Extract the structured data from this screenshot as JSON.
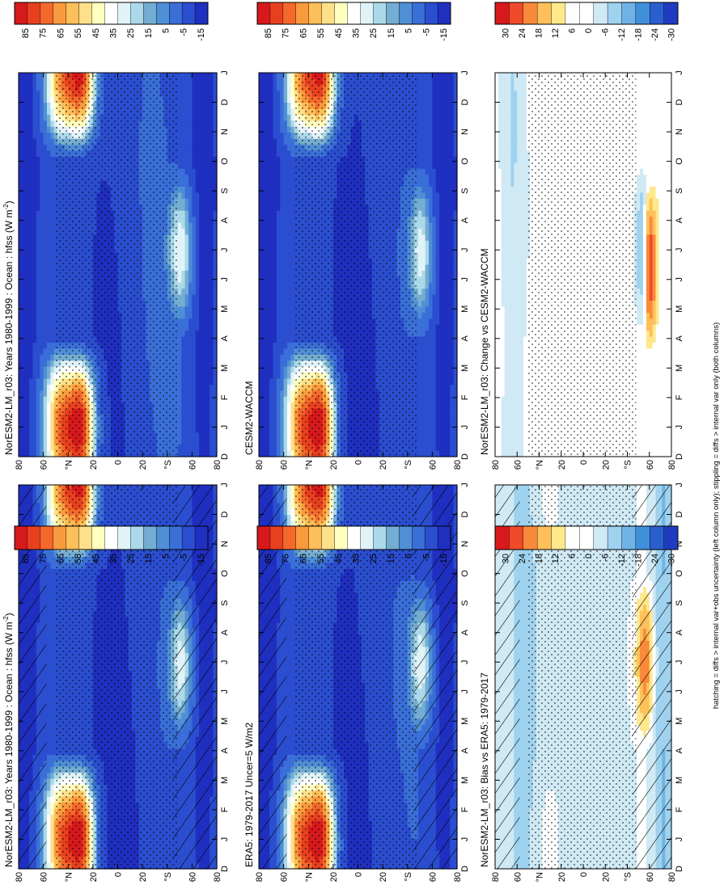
{
  "figure": {
    "footnote": "hatching = diffs > internal var+obs uncertainty (left column only); stippling = diffs > internal var only (both columns)"
  },
  "colors": {
    "absolute_scale": [
      "#d7191c",
      "#e8401f",
      "#f4692b",
      "#f99a3d",
      "#fdbf59",
      "#fee08b",
      "#ffffbf",
      "#ffffff",
      "#e0f3f8",
      "#abd9e9",
      "#74add1",
      "#4f8fd6",
      "#3a6fd8",
      "#2b4ed0",
      "#1f2fc0"
    ],
    "difference_scale": [
      "#d7191c",
      "#ef4a2a",
      "#f98a3a",
      "#fdc05a",
      "#fee88b",
      "#ffffff",
      "#ffffff",
      "#cfe9f5",
      "#9fd2ee",
      "#6fb3e6",
      "#3f8fdb",
      "#2a5fcf",
      "#1f3cc0"
    ]
  },
  "common": {
    "lat_ticks": [
      "80",
      "60",
      "°N",
      "20",
      "0",
      "20",
      "°S",
      "60",
      "80"
    ],
    "month_ticks": [
      "D",
      "J",
      "F",
      "M",
      "A",
      "M",
      "J",
      "J",
      "A",
      "S",
      "O",
      "N",
      "D",
      "J"
    ]
  },
  "colorbars": {
    "absolute": [
      "85",
      "75",
      "65",
      "55",
      "45",
      "35",
      "25",
      "15",
      "5",
      "-5",
      "-15"
    ],
    "difference": [
      "30",
      "24",
      "18",
      "12",
      "6",
      "0",
      "-6",
      "-12",
      "-18",
      "-24",
      "-30"
    ]
  },
  "chart_data": [
    {
      "type": "heatmap",
      "title": "NorESM2-LM_r03: Years 1980-1999 : Ocean : hfss (W m",
      "title_sup": "-2",
      "title_end": ")",
      "x": [
        "D",
        "J",
        "F",
        "M",
        "A",
        "M",
        "J",
        "J",
        "A",
        "S",
        "O",
        "N",
        "D",
        "J"
      ],
      "y": [
        "80",
        "60",
        "°N",
        "20",
        "0",
        "20",
        "°S",
        "60",
        "80"
      ],
      "scale": "absolute",
      "colorbar": [
        "85",
        "75",
        "65",
        "55",
        "45",
        "35",
        "25",
        "15",
        "5",
        "-5",
        "-15"
      ],
      "hatching": true,
      "stippling": true
    },
    {
      "type": "heatmap",
      "title": "NorESM2-LM_r03: Years 1980-1999 : Ocean : hfss (W m",
      "title_sup": "-2",
      "title_end": ")",
      "x": [
        "D",
        "J",
        "F",
        "M",
        "A",
        "M",
        "J",
        "J",
        "A",
        "S",
        "O",
        "N",
        "D",
        "J"
      ],
      "y": [
        "80",
        "60",
        "°N",
        "20",
        "0",
        "20",
        "°S",
        "60",
        "80"
      ],
      "scale": "absolute",
      "colorbar": [
        "85",
        "75",
        "65",
        "55",
        "45",
        "35",
        "25",
        "15",
        "5",
        "-5",
        "-15"
      ],
      "hatching": false,
      "stippling": true
    },
    {
      "type": "heatmap",
      "title": "ERA5: 1979-2017 Uncer=5 W/m2",
      "x": [
        "D",
        "J",
        "F",
        "M",
        "A",
        "M",
        "J",
        "J",
        "A",
        "S",
        "O",
        "N",
        "D",
        "J"
      ],
      "y": [
        "80",
        "60",
        "°N",
        "20",
        "0",
        "20",
        "°S",
        "60",
        "80"
      ],
      "scale": "absolute",
      "colorbar": [
        "85",
        "75",
        "65",
        "55",
        "45",
        "35",
        "25",
        "15",
        "5",
        "-5",
        "-15"
      ],
      "hatching": true,
      "stippling": true
    },
    {
      "type": "heatmap",
      "title": "CESM2-WACCM",
      "x": [
        "D",
        "J",
        "F",
        "M",
        "A",
        "M",
        "J",
        "J",
        "A",
        "S",
        "O",
        "N",
        "D",
        "J"
      ],
      "y": [
        "80",
        "60",
        "°N",
        "20",
        "0",
        "20",
        "°S",
        "60",
        "80"
      ],
      "scale": "absolute",
      "colorbar": [
        "85",
        "75",
        "65",
        "55",
        "45",
        "35",
        "25",
        "15",
        "5",
        "-5",
        "-15"
      ],
      "hatching": false,
      "stippling": true
    },
    {
      "type": "heatmap",
      "title": "NorESM2-LM_r03: Bias vs ERA5: 1979-2017",
      "x": [
        "D",
        "J",
        "F",
        "M",
        "A",
        "M",
        "J",
        "J",
        "A",
        "S",
        "O",
        "N",
        "D",
        "J"
      ],
      "y": [
        "80",
        "60",
        "°N",
        "20",
        "0",
        "20",
        "°S",
        "60",
        "80"
      ],
      "scale": "difference",
      "colorbar": [
        "30",
        "24",
        "18",
        "12",
        "6",
        "0",
        "-6",
        "-12",
        "-18",
        "-24",
        "-30"
      ],
      "hatching": true,
      "stippling": true
    },
    {
      "type": "heatmap",
      "title": "NorESM2-LM_r03: Change vs CESM2-WACCM",
      "x": [
        "D",
        "J",
        "F",
        "M",
        "A",
        "M",
        "J",
        "J",
        "A",
        "S",
        "O",
        "N",
        "D",
        "J"
      ],
      "y": [
        "80",
        "60",
        "°N",
        "20",
        "0",
        "20",
        "°S",
        "60",
        "80"
      ],
      "scale": "difference",
      "colorbar": [
        "30",
        "24",
        "18",
        "12",
        "6",
        "0",
        "-6",
        "-12",
        "-18",
        "-24",
        "-30"
      ],
      "hatching": false,
      "stippling": true
    }
  ]
}
